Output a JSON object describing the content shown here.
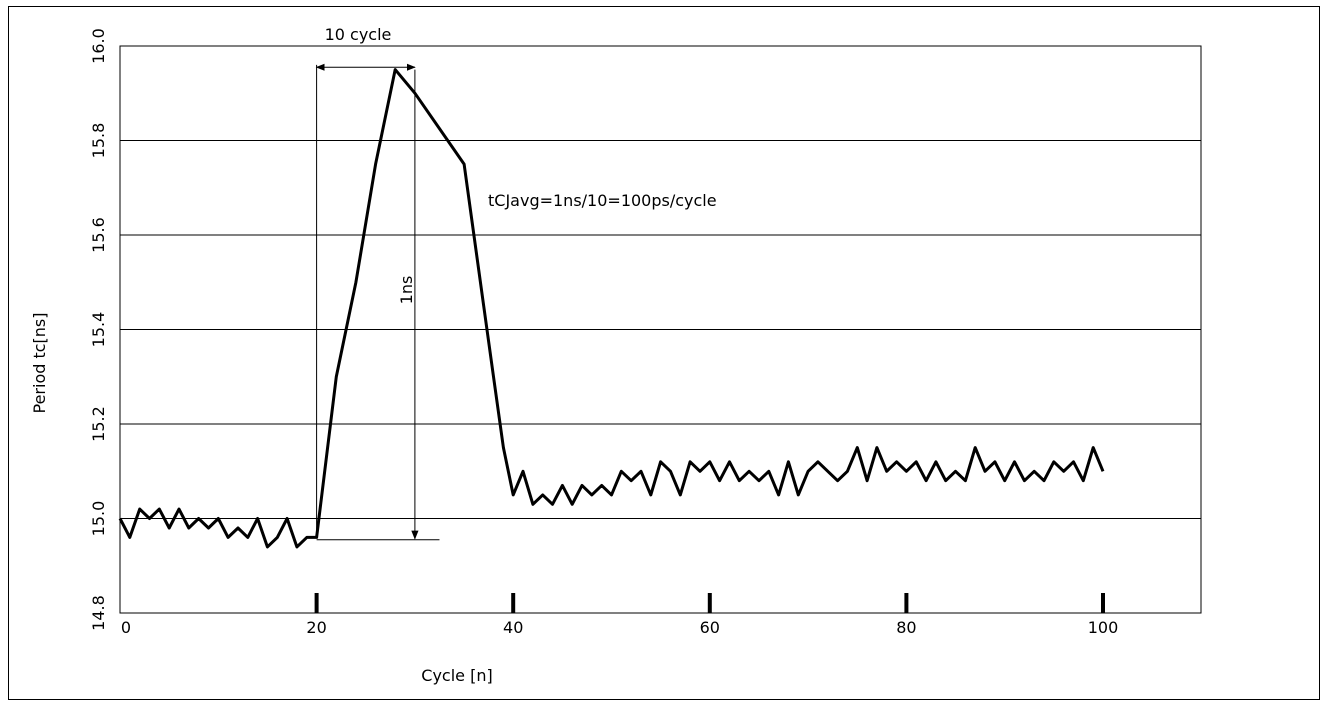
{
  "chart_data": {
    "type": "line",
    "xlabel": "Cycle [n]",
    "ylabel": "Period tc[ns]",
    "xlim": [
      0,
      110
    ],
    "ylim": [
      14.8,
      16.0
    ],
    "x_ticks": [
      "0",
      "20",
      "40",
      "60",
      "80",
      "100"
    ],
    "y_ticks": [
      "14.8",
      "15.0",
      "15.2",
      "15.4",
      "15.6",
      "15.8",
      "16.0"
    ],
    "grid": "horizontal",
    "annotations": {
      "span": "10 cycle",
      "height": "1ns",
      "formula": "tCJavg=1ns/10=100ps/cycle"
    },
    "series": [
      {
        "x": [
          0,
          1,
          2,
          3,
          4,
          5,
          6,
          7,
          8,
          9,
          10,
          11,
          12,
          13,
          14,
          15,
          16,
          17,
          18,
          19,
          20,
          22,
          24,
          26,
          28,
          30,
          35,
          36,
          37,
          38,
          39,
          40,
          41,
          42,
          43,
          44,
          45,
          46,
          47,
          48,
          49,
          50,
          51,
          52,
          53,
          54,
          55,
          56,
          57,
          58,
          59,
          60,
          61,
          62,
          63,
          64,
          65,
          66,
          67,
          68,
          69,
          70,
          71,
          72,
          73,
          74,
          75,
          76,
          77,
          78,
          79,
          80,
          81,
          82,
          83,
          84,
          85,
          86,
          87,
          88,
          89,
          90,
          91,
          92,
          93,
          94,
          95,
          96,
          97,
          98,
          99,
          100
        ],
        "values": [
          15.0,
          14.96,
          15.02,
          15.0,
          15.02,
          14.98,
          15.02,
          14.98,
          15.0,
          14.98,
          15.0,
          14.96,
          14.98,
          14.96,
          15.0,
          14.94,
          14.96,
          15.0,
          14.94,
          14.96,
          14.96,
          15.3,
          15.5,
          15.75,
          15.95,
          15.9,
          15.75,
          15.6,
          15.45,
          15.3,
          15.15,
          15.05,
          15.1,
          15.03,
          15.05,
          15.03,
          15.07,
          15.03,
          15.07,
          15.05,
          15.07,
          15.05,
          15.1,
          15.08,
          15.1,
          15.05,
          15.12,
          15.1,
          15.05,
          15.12,
          15.1,
          15.12,
          15.08,
          15.12,
          15.08,
          15.1,
          15.08,
          15.1,
          15.05,
          15.12,
          15.05,
          15.1,
          15.12,
          15.1,
          15.08,
          15.1,
          15.15,
          15.08,
          15.15,
          15.1,
          15.12,
          15.1,
          15.12,
          15.08,
          15.12,
          15.08,
          15.1,
          15.08,
          15.15,
          15.1,
          15.12,
          15.08,
          15.12,
          15.08,
          15.1,
          15.08,
          15.12,
          15.1,
          15.12,
          15.08,
          15.15,
          15.1
        ]
      }
    ]
  }
}
